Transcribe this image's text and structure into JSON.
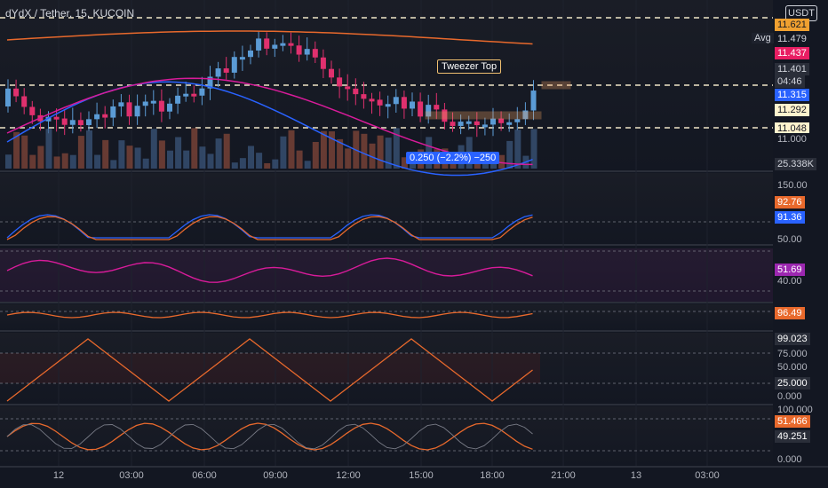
{
  "header": {
    "symbol": "dYdX / Tether, 15, KUCOIN",
    "currency_button": "USDT",
    "avg_label": "Avg"
  },
  "main_pane": {
    "price_labels": [
      {
        "text": "11.621",
        "bg": "#f0a030",
        "fg": "#131722"
      },
      {
        "text": "11.479",
        "bg": "#131722",
        "fg": "#d1d4dc"
      },
      {
        "text": "11.437",
        "bg": "#e91e63",
        "fg": "#ffffff"
      },
      {
        "text": "11.401",
        "bg": "#2a2e39",
        "fg": "#d1d4dc"
      },
      {
        "text": "04:46",
        "bg": "#2a2e39",
        "fg": "#d1d4dc"
      },
      {
        "text": "11.315",
        "bg": "#2962ff",
        "fg": "#ffffff"
      },
      {
        "text": "11.292",
        "bg": "#fff3cd",
        "fg": "#131722"
      },
      {
        "text": "11.048",
        "bg": "#fff3cd",
        "fg": "#131722"
      },
      {
        "text": "11.000",
        "bg": "#131722",
        "fg": "#b2b5be"
      },
      {
        "text": "25.338K",
        "bg": "#2a2e39",
        "fg": "#d1d4dc"
      }
    ],
    "pattern_label": "Tweezer Top",
    "measure_label": "0.250 (−2.2%) −250"
  },
  "stoch_pane": {
    "ticks": [
      "150.00",
      "50.00"
    ],
    "values": [
      {
        "text": "92.76",
        "bg": "#e8692c"
      },
      {
        "text": "91.36",
        "bg": "#2962ff"
      }
    ]
  },
  "rsi_pane": {
    "ticks": [
      "40.00"
    ],
    "values": [
      {
        "text": "51.69",
        "bg": "#9c27b0"
      }
    ]
  },
  "osc_pane": {
    "values": [
      {
        "text": "96.49",
        "bg": "#e8692c"
      }
    ]
  },
  "pct_pane": {
    "ticks": [
      "75.000",
      "50.000",
      "0.000"
    ],
    "values": [
      {
        "text": "99.023",
        "bg": "#2a2e39"
      },
      {
        "text": "25.000",
        "bg": "#2a2e39"
      }
    ]
  },
  "lower_pane": {
    "ticks": [
      "100.000",
      "0.000"
    ],
    "values": [
      {
        "text": "51.466",
        "bg": "#e8692c"
      },
      {
        "text": "49.251",
        "bg": "#2a2e39"
      }
    ]
  },
  "time_axis": [
    "12",
    "03:00",
    "06:00",
    "09:00",
    "12:00",
    "15:00",
    "18:00",
    "21:00",
    "13",
    "03:00"
  ],
  "colors": {
    "up": "#5b9bd5",
    "down": "#e0306e",
    "ema_fast": "#2962ff",
    "ema_mid": "#d81b9a",
    "ema_slow": "#e8692c"
  }
}
